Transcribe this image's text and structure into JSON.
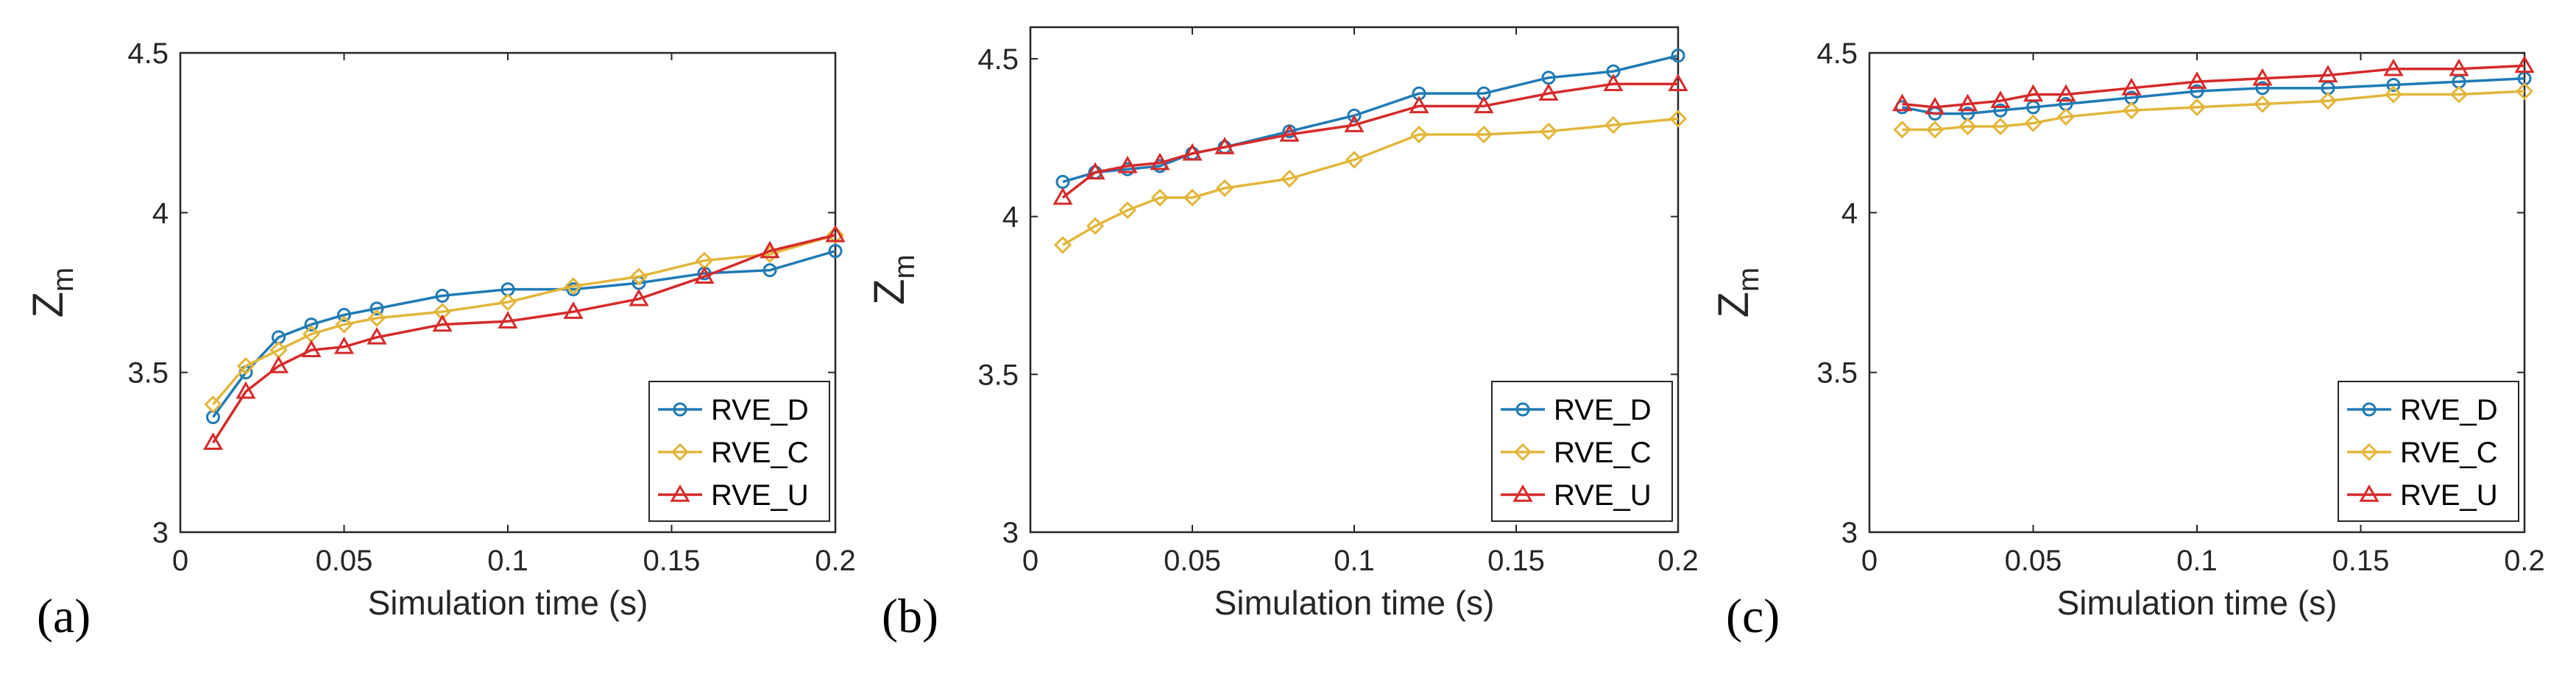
{
  "figure": {
    "colors": {
      "RVE_D": "#1f7ab5",
      "RVE_C": "#e3b63a",
      "RVE_U": "#d62a2a",
      "axis": "#262626"
    }
  },
  "chart_data": [
    {
      "type": "line",
      "panel_label": "(a)",
      "title": "",
      "xlabel": "Simulation time (s)",
      "ylabel_main": "Z",
      "ylabel_sub": "m",
      "xlim": [
        0,
        0.2
      ],
      "ylim": [
        3,
        4.5
      ],
      "xticks": [
        0,
        0.05,
        0.1,
        0.15,
        0.2
      ],
      "xtick_labels": [
        "0",
        "0.05",
        "0.1",
        "0.15",
        "0.2"
      ],
      "yticks": [
        3,
        3.5,
        4,
        4.5
      ],
      "ytick_labels": [
        "3",
        "3.5",
        "4",
        "4.5"
      ],
      "grid": false,
      "legend_position": "bottom-right",
      "x": [
        0.01,
        0.02,
        0.03,
        0.04,
        0.05,
        0.06,
        0.08,
        0.1,
        0.12,
        0.14,
        0.16,
        0.18,
        0.2
      ],
      "series": [
        {
          "name": "RVE_D",
          "marker": "circle",
          "values": [
            3.36,
            3.5,
            3.61,
            3.65,
            3.68,
            3.7,
            3.74,
            3.76,
            3.76,
            3.78,
            3.81,
            3.82,
            3.88
          ]
        },
        {
          "name": "RVE_C",
          "marker": "diamond",
          "values": [
            3.4,
            3.52,
            3.57,
            3.62,
            3.65,
            3.67,
            3.69,
            3.72,
            3.77,
            3.8,
            3.85,
            3.87,
            3.93
          ]
        },
        {
          "name": "RVE_U",
          "marker": "triangle",
          "values": [
            3.28,
            3.44,
            3.52,
            3.57,
            3.58,
            3.61,
            3.65,
            3.66,
            3.69,
            3.73,
            3.8,
            3.88,
            3.93
          ]
        }
      ]
    },
    {
      "type": "line",
      "panel_label": "(b)",
      "title": "",
      "xlabel": "Simulation time (s)",
      "ylabel_main": "Z",
      "ylabel_sub": "m",
      "xlim": [
        0,
        0.2
      ],
      "ylim": [
        3,
        4.6
      ],
      "xticks": [
        0,
        0.05,
        0.1,
        0.15,
        0.2
      ],
      "xtick_labels": [
        "0",
        "0.05",
        "0.1",
        "0.15",
        "0.2"
      ],
      "yticks": [
        3,
        3.5,
        4,
        4.5
      ],
      "ytick_labels": [
        "3",
        "3.5",
        "4",
        "4.5"
      ],
      "grid": false,
      "legend_position": "bottom-right",
      "x": [
        0.01,
        0.02,
        0.03,
        0.04,
        0.05,
        0.06,
        0.08,
        0.1,
        0.12,
        0.14,
        0.16,
        0.18,
        0.2
      ],
      "series": [
        {
          "name": "RVE_D",
          "marker": "circle",
          "values": [
            4.11,
            4.14,
            4.15,
            4.16,
            4.2,
            4.22,
            4.27,
            4.32,
            4.39,
            4.39,
            4.44,
            4.46,
            4.51
          ]
        },
        {
          "name": "RVE_C",
          "marker": "diamond",
          "values": [
            3.91,
            3.97,
            4.02,
            4.06,
            4.06,
            4.09,
            4.12,
            4.18,
            4.26,
            4.26,
            4.27,
            4.29,
            4.31
          ]
        },
        {
          "name": "RVE_U",
          "marker": "triangle",
          "values": [
            4.06,
            4.14,
            4.16,
            4.17,
            4.2,
            4.22,
            4.26,
            4.29,
            4.35,
            4.35,
            4.39,
            4.42,
            4.42
          ]
        }
      ]
    },
    {
      "type": "line",
      "panel_label": "(c)",
      "title": "",
      "xlabel": "Simulation time (s)",
      "ylabel_main": "Z",
      "ylabel_sub": "m",
      "xlim": [
        0,
        0.2
      ],
      "ylim": [
        3,
        4.5
      ],
      "xticks": [
        0,
        0.05,
        0.1,
        0.15,
        0.2
      ],
      "xtick_labels": [
        "0",
        "0.05",
        "0.1",
        "0.15",
        "0.2"
      ],
      "yticks": [
        3,
        3.5,
        4,
        4.5
      ],
      "ytick_labels": [
        "3",
        "3.5",
        "4",
        "4.5"
      ],
      "grid": false,
      "legend_position": "bottom-right",
      "x": [
        0.01,
        0.02,
        0.03,
        0.04,
        0.05,
        0.06,
        0.08,
        0.1,
        0.12,
        0.14,
        0.16,
        0.18,
        0.2
      ],
      "series": [
        {
          "name": "RVE_D",
          "marker": "circle",
          "values": [
            4.33,
            4.31,
            4.31,
            4.32,
            4.33,
            4.34,
            4.36,
            4.38,
            4.39,
            4.39,
            4.4,
            4.41,
            4.42
          ]
        },
        {
          "name": "RVE_C",
          "marker": "diamond",
          "values": [
            4.26,
            4.26,
            4.27,
            4.27,
            4.28,
            4.3,
            4.32,
            4.33,
            4.34,
            4.35,
            4.37,
            4.37,
            4.38
          ]
        },
        {
          "name": "RVE_U",
          "marker": "triangle",
          "values": [
            4.34,
            4.33,
            4.34,
            4.35,
            4.37,
            4.37,
            4.39,
            4.41,
            4.42,
            4.43,
            4.45,
            4.45,
            4.46
          ]
        }
      ]
    }
  ]
}
